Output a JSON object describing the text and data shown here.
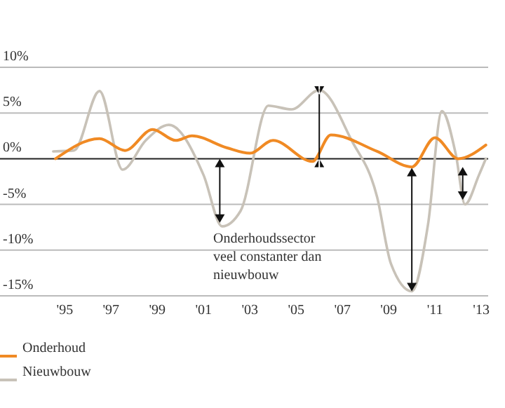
{
  "chart_data": {
    "type": "line",
    "xlim": [
      1992.2,
      2013.3
    ],
    "ylim": [
      -15,
      10
    ],
    "xticks": [
      {
        "value": 1995,
        "label": "'95"
      },
      {
        "value": 1997,
        "label": "'97"
      },
      {
        "value": 1999,
        "label": "'99"
      },
      {
        "value": 2001,
        "label": "'01"
      },
      {
        "value": 2003,
        "label": "'03"
      },
      {
        "value": 2005,
        "label": "'05"
      },
      {
        "value": 2007,
        "label": "'07"
      },
      {
        "value": 2009,
        "label": "'09"
      },
      {
        "value": 2011,
        "label": "'11"
      },
      {
        "value": 2013,
        "label": "'13"
      }
    ],
    "yticks": [
      {
        "value": -15,
        "label": "-15%"
      },
      {
        "value": -10,
        "label": "-10%"
      },
      {
        "value": -5,
        "label": "-5%"
      },
      {
        "value": 0,
        "label": "0%"
      },
      {
        "value": 5,
        "label": "5%"
      },
      {
        "value": 10,
        "label": "10%"
      }
    ],
    "grid": "y",
    "legend": "bottom left",
    "series": [
      {
        "name": "Onderhoud",
        "color": "#f08a24",
        "x": [
          1994.6,
          1996.5,
          1997.6,
          1998.8,
          1999.8,
          2000.5,
          2002,
          2003,
          2004,
          2005.7,
          2006.5,
          2008.5,
          2010,
          2011,
          2012,
          2013.2
        ],
        "values": [
          0,
          2.2,
          0.9,
          3.2,
          2,
          2.5,
          1.2,
          0.6,
          2,
          -0.3,
          2.6,
          0.8,
          -0.9,
          2.3,
          0,
          1.5
        ]
      },
      {
        "name": "Nieuwbouw",
        "color": "#c8c2b8",
        "x": [
          1994.5,
          1995.4,
          1996.5,
          1997.5,
          1998.5,
          1999.5,
          2001,
          2001.8,
          2002.6,
          2003.8,
          2004.8,
          2006,
          2007.4,
          2008.5,
          2009.1,
          2010,
          2010.7,
          2011.3,
          2011.9,
          2012.3,
          2012.9,
          2013.2
        ],
        "values": [
          0.8,
          0.9,
          7.4,
          -1.2,
          2,
          3.7,
          -1.8,
          -7.4,
          -5.7,
          5.8,
          5.4,
          7.5,
          2,
          -4.2,
          -11.5,
          -14.5,
          -7.2,
          5.2,
          0.5,
          -5,
          -1.8,
          0
        ]
      }
    ],
    "annotations": [
      "Onderhoudssector veel constanter dan nieuwbouw"
    ]
  }
}
